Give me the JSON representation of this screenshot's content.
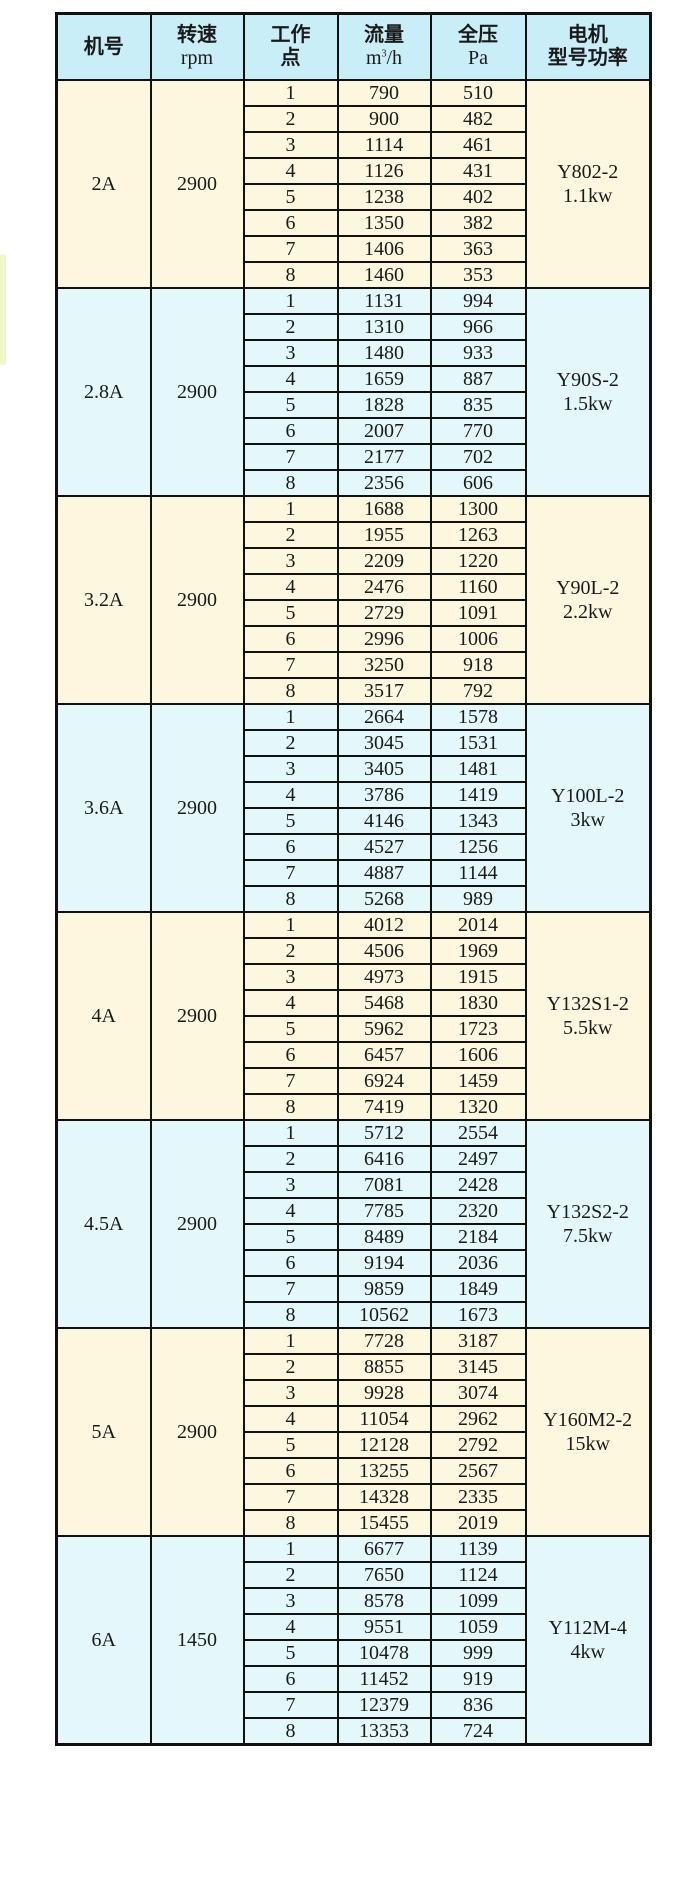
{
  "colors": {
    "header_bg": "#c9eef7",
    "row_cream": "#fdf7df",
    "row_blue": "#e4f8fc",
    "border": "#111111"
  },
  "header": {
    "model": "机号",
    "speed": "转速",
    "speed_unit": "rpm",
    "point_1": "工作",
    "point_2": "点",
    "flow": "流量",
    "flow_unit_base": "m",
    "flow_unit_exp": "3",
    "flow_unit_tail": "/h",
    "pressure": "全压",
    "pressure_unit": "Pa",
    "motor_1": "电机",
    "motor_2": "型号功率"
  },
  "groups": [
    {
      "model": "2A",
      "speed": "2900",
      "motor_type": "Y802-2",
      "motor_power": "1.1kw",
      "rows": [
        [
          "1",
          "790",
          "510"
        ],
        [
          "2",
          "900",
          "482"
        ],
        [
          "3",
          "1114",
          "461"
        ],
        [
          "4",
          "1126",
          "431"
        ],
        [
          "5",
          "1238",
          "402"
        ],
        [
          "6",
          "1350",
          "382"
        ],
        [
          "7",
          "1406",
          "363"
        ],
        [
          "8",
          "1460",
          "353"
        ]
      ]
    },
    {
      "model": "2.8A",
      "speed": "2900",
      "motor_type": "Y90S-2",
      "motor_power": "1.5kw",
      "rows": [
        [
          "1",
          "1131",
          "994"
        ],
        [
          "2",
          "1310",
          "966"
        ],
        [
          "3",
          "1480",
          "933"
        ],
        [
          "4",
          "1659",
          "887"
        ],
        [
          "5",
          "1828",
          "835"
        ],
        [
          "6",
          "2007",
          "770"
        ],
        [
          "7",
          "2177",
          "702"
        ],
        [
          "8",
          "2356",
          "606"
        ]
      ]
    },
    {
      "model": "3.2A",
      "speed": "2900",
      "motor_type": "Y90L-2",
      "motor_power": "2.2kw",
      "rows": [
        [
          "1",
          "1688",
          "1300"
        ],
        [
          "2",
          "1955",
          "1263"
        ],
        [
          "3",
          "2209",
          "1220"
        ],
        [
          "4",
          "2476",
          "1160"
        ],
        [
          "5",
          "2729",
          "1091"
        ],
        [
          "6",
          "2996",
          "1006"
        ],
        [
          "7",
          "3250",
          "918"
        ],
        [
          "8",
          "3517",
          "792"
        ]
      ]
    },
    {
      "model": "3.6A",
      "speed": "2900",
      "motor_type": "Y100L-2",
      "motor_power": "3kw",
      "rows": [
        [
          "1",
          "2664",
          "1578"
        ],
        [
          "2",
          "3045",
          "1531"
        ],
        [
          "3",
          "3405",
          "1481"
        ],
        [
          "4",
          "3786",
          "1419"
        ],
        [
          "5",
          "4146",
          "1343"
        ],
        [
          "6",
          "4527",
          "1256"
        ],
        [
          "7",
          "4887",
          "1144"
        ],
        [
          "8",
          "5268",
          "989"
        ]
      ]
    },
    {
      "model": "4A",
      "speed": "2900",
      "motor_type": "Y132S1-2",
      "motor_power": "5.5kw",
      "rows": [
        [
          "1",
          "4012",
          "2014"
        ],
        [
          "2",
          "4506",
          "1969"
        ],
        [
          "3",
          "4973",
          "1915"
        ],
        [
          "4",
          "5468",
          "1830"
        ],
        [
          "5",
          "5962",
          "1723"
        ],
        [
          "6",
          "6457",
          "1606"
        ],
        [
          "7",
          "6924",
          "1459"
        ],
        [
          "8",
          "7419",
          "1320"
        ]
      ]
    },
    {
      "model": "4.5A",
      "speed": "2900",
      "motor_type": "Y132S2-2",
      "motor_power": "7.5kw",
      "rows": [
        [
          "1",
          "5712",
          "2554"
        ],
        [
          "2",
          "6416",
          "2497"
        ],
        [
          "3",
          "7081",
          "2428"
        ],
        [
          "4",
          "7785",
          "2320"
        ],
        [
          "5",
          "8489",
          "2184"
        ],
        [
          "6",
          "9194",
          "2036"
        ],
        [
          "7",
          "9859",
          "1849"
        ],
        [
          "8",
          "10562",
          "1673"
        ]
      ]
    },
    {
      "model": "5A",
      "speed": "2900",
      "motor_type": "Y160M2-2",
      "motor_power": "15kw",
      "rows": [
        [
          "1",
          "7728",
          "3187"
        ],
        [
          "2",
          "8855",
          "3145"
        ],
        [
          "3",
          "9928",
          "3074"
        ],
        [
          "4",
          "11054",
          "2962"
        ],
        [
          "5",
          "12128",
          "2792"
        ],
        [
          "6",
          "13255",
          "2567"
        ],
        [
          "7",
          "14328",
          "2335"
        ],
        [
          "8",
          "15455",
          "2019"
        ]
      ]
    },
    {
      "model": "6A",
      "speed": "1450",
      "motor_type": "Y112M-4",
      "motor_power": "4kw",
      "rows": [
        [
          "1",
          "6677",
          "1139"
        ],
        [
          "2",
          "7650",
          "1124"
        ],
        [
          "3",
          "8578",
          "1099"
        ],
        [
          "4",
          "9551",
          "1059"
        ],
        [
          "5",
          "10478",
          "999"
        ],
        [
          "6",
          "11452",
          "919"
        ],
        [
          "7",
          "12379",
          "836"
        ],
        [
          "8",
          "13353",
          "724"
        ]
      ]
    }
  ]
}
